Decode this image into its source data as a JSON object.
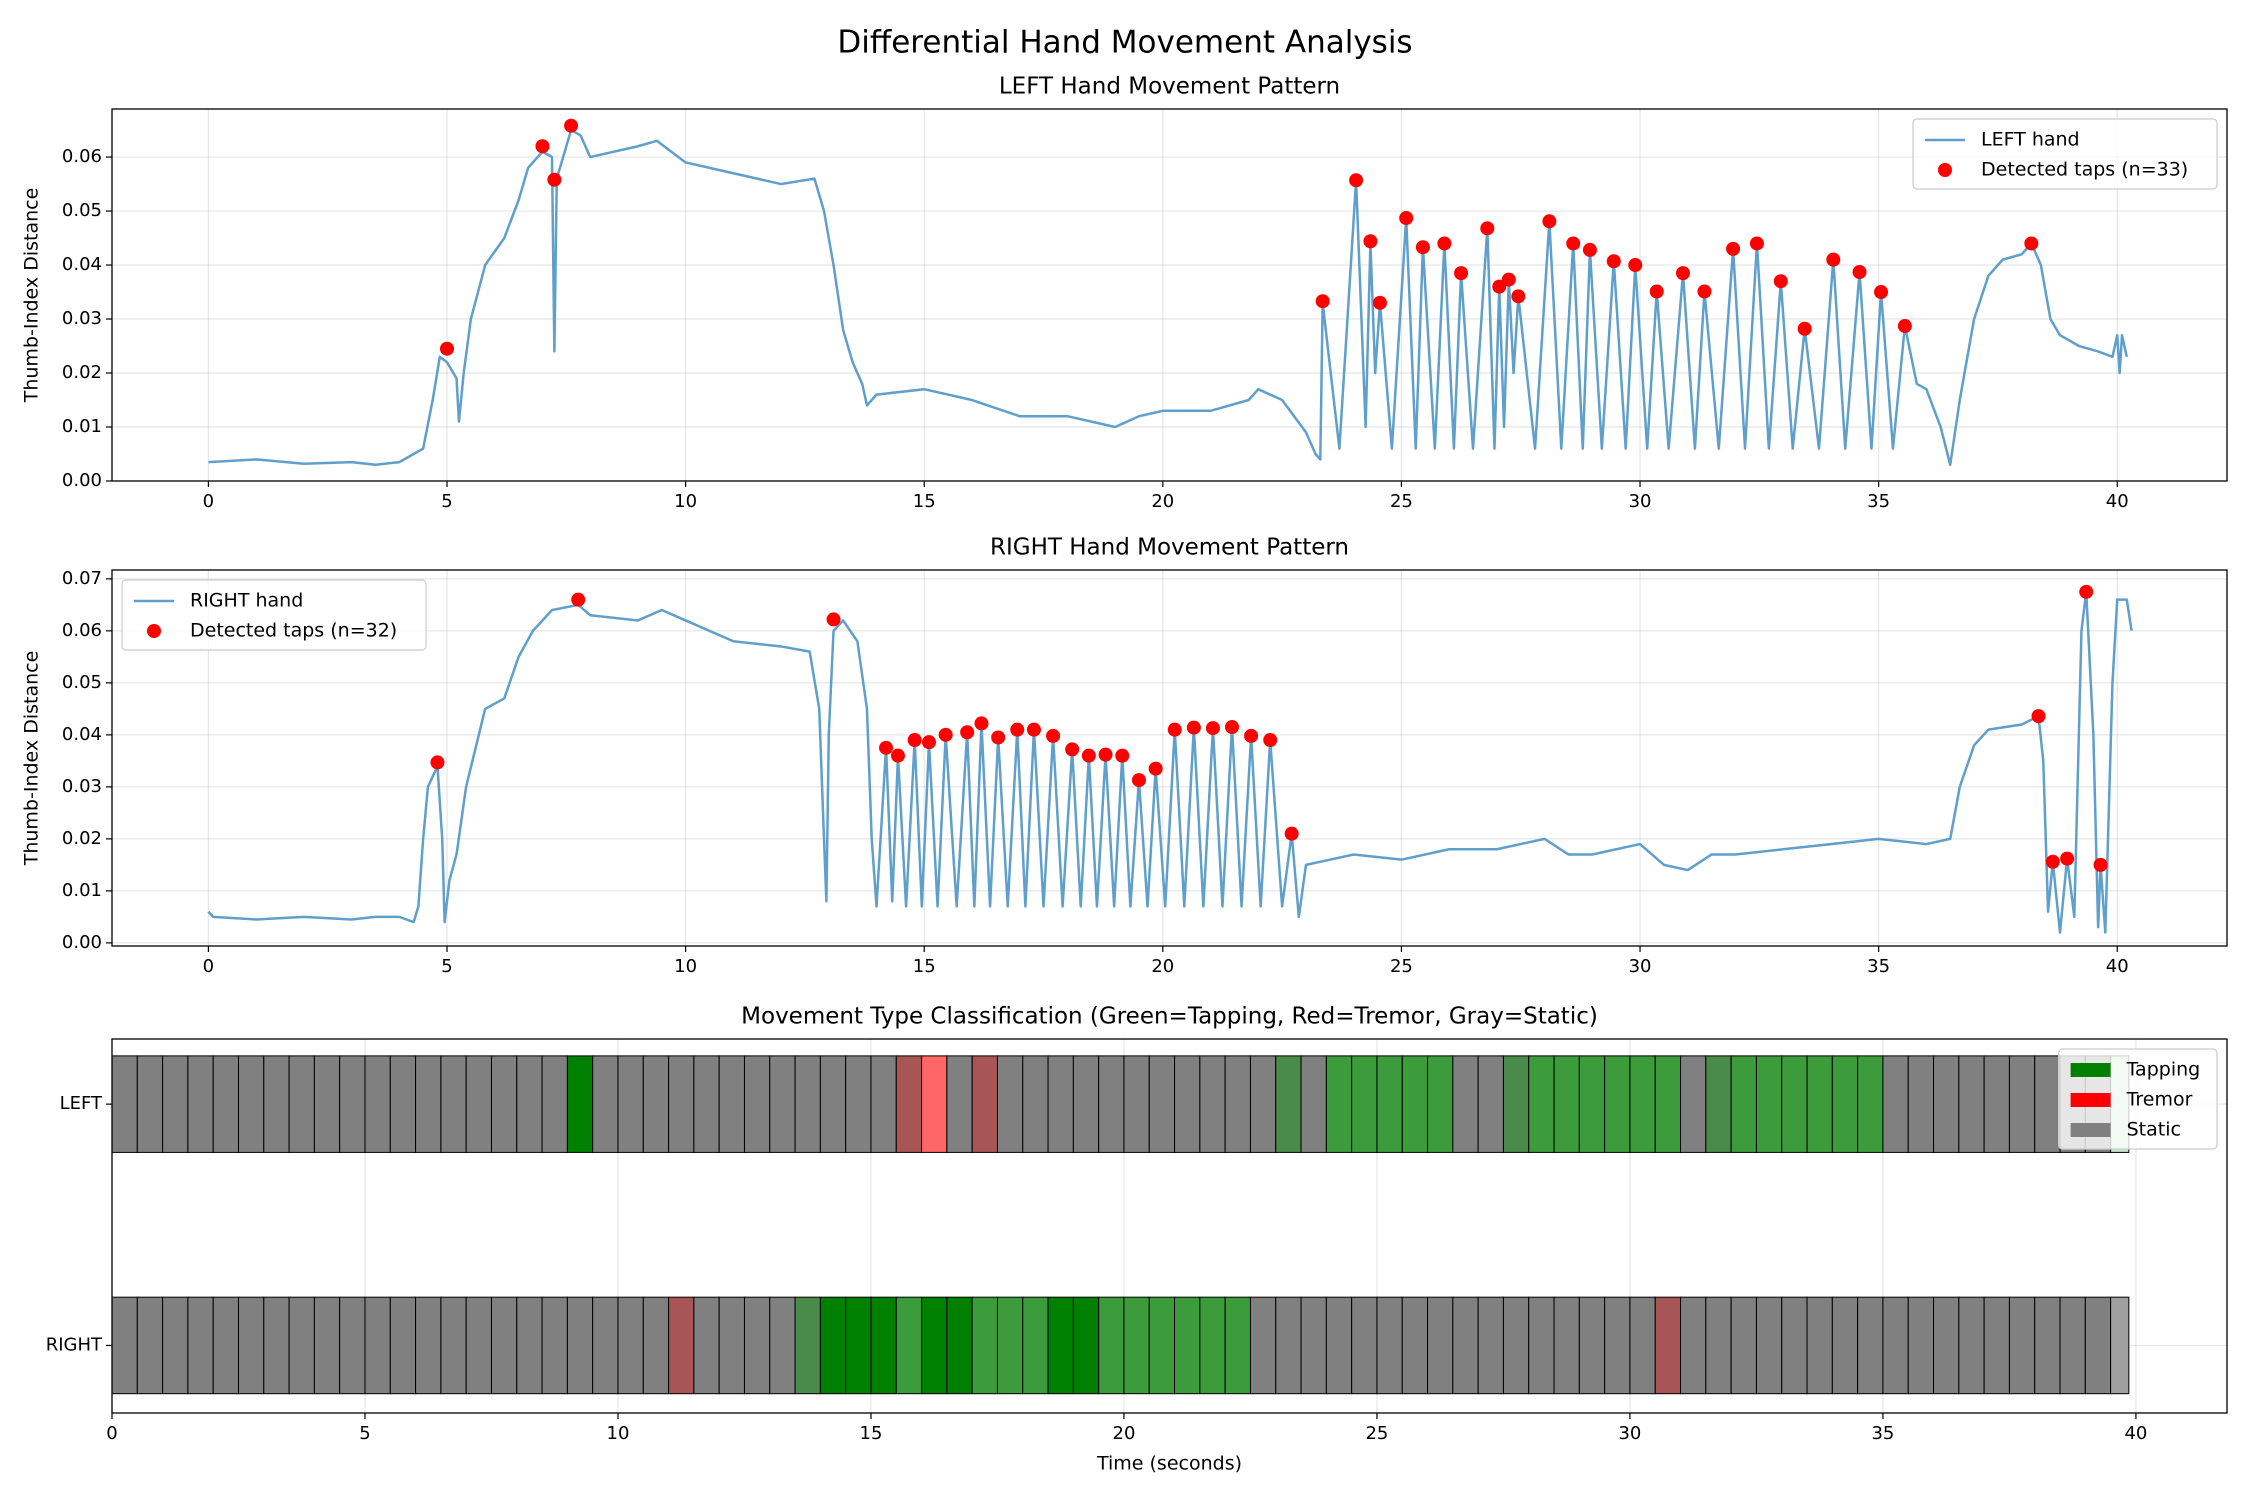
{
  "title": "Differential Hand Movement Analysis",
  "chart_data": [
    {
      "type": "line",
      "title": "LEFT Hand Movement Pattern",
      "ylabel": "Thumb-Index Distance",
      "xlim": [
        -2.02,
        42.3
      ],
      "ylim": [
        0,
        0.0689
      ],
      "xticks": [
        0,
        5,
        10,
        15,
        20,
        25,
        30,
        35,
        40
      ],
      "yticks": [
        {
          "value": 0,
          "label": "0.00"
        },
        0.01,
        0.02,
        0.03,
        0.04,
        0.05,
        0.06
      ],
      "grid": true,
      "legend": "upper right",
      "series": [
        {
          "name": "LEFT hand",
          "type": "line",
          "color": "#5f9fcb",
          "x": [
            0,
            1,
            2,
            3,
            3.5,
            4,
            4.5,
            4.7,
            4.85,
            5.0,
            5.2,
            5.25,
            5.35,
            5.5,
            5.8,
            6.2,
            6.5,
            6.7,
            7.0,
            7.2,
            7.25,
            7.3,
            7.5,
            7.6,
            7.8,
            8,
            9,
            9.4,
            10,
            11,
            12,
            12.7,
            12.9,
            13.1,
            13.3,
            13.5,
            13.7,
            13.8,
            14,
            15,
            16,
            17,
            18,
            19,
            19.5,
            20,
            21,
            21.8,
            22,
            22.5,
            23,
            23.2,
            23.3,
            23.35,
            23.7,
            24.05,
            24.25,
            24.35,
            24.45,
            24.55,
            24.8,
            25.1,
            25.3,
            25.45,
            25.7,
            25.9,
            26.1,
            26.25,
            26.5,
            26.8,
            26.95,
            27.05,
            27.15,
            27.25,
            27.35,
            27.45,
            27.8,
            28.1,
            28.35,
            28.6,
            28.8,
            28.95,
            29.2,
            29.45,
            29.7,
            29.9,
            30.15,
            30.35,
            30.6,
            30.9,
            31.15,
            31.35,
            31.65,
            31.95,
            32.2,
            32.45,
            32.7,
            32.95,
            33.2,
            33.45,
            33.75,
            34.05,
            34.3,
            34.6,
            34.85,
            35.05,
            35.3,
            35.55,
            35.8,
            36.0,
            36.3,
            36.5,
            36.7,
            37,
            37.3,
            37.6,
            38.0,
            38.2,
            38.4,
            38.6,
            38.8,
            39.2,
            39.6,
            39.9,
            40,
            40.05,
            40.1,
            40.2
          ],
          "values": [
            0.0035,
            0.004,
            0.0032,
            0.0035,
            0.003,
            0.0035,
            0.006,
            0.015,
            0.023,
            0.022,
            0.019,
            0.011,
            0.02,
            0.03,
            0.04,
            0.045,
            0.052,
            0.058,
            0.061,
            0.06,
            0.024,
            0.056,
            0.062,
            0.065,
            0.064,
            0.06,
            0.062,
            0.063,
            0.059,
            0.057,
            0.055,
            0.056,
            0.05,
            0.04,
            0.028,
            0.022,
            0.018,
            0.014,
            0.016,
            0.017,
            0.015,
            0.012,
            0.012,
            0.01,
            0.012,
            0.013,
            0.013,
            0.015,
            0.017,
            0.015,
            0.009,
            0.005,
            0.004,
            0.033,
            0.006,
            0.0557,
            0.01,
            0.044,
            0.02,
            0.033,
            0.006,
            0.0487,
            0.006,
            0.0433,
            0.006,
            0.044,
            0.006,
            0.0385,
            0.006,
            0.0468,
            0.006,
            0.036,
            0.01,
            0.0373,
            0.02,
            0.0342,
            0.006,
            0.0481,
            0.006,
            0.044,
            0.006,
            0.0428,
            0.006,
            0.0407,
            0.006,
            0.04,
            0.006,
            0.0351,
            0.006,
            0.0385,
            0.006,
            0.0351,
            0.006,
            0.043,
            0.006,
            0.044,
            0.006,
            0.037,
            0.006,
            0.0282,
            0.006,
            0.041,
            0.006,
            0.0387,
            0.006,
            0.035,
            0.006,
            0.0287,
            0.018,
            0.017,
            0.01,
            0.003,
            0.015,
            0.03,
            0.038,
            0.041,
            0.042,
            0.044,
            0.04,
            0.03,
            0.027,
            0.025,
            0.024,
            0.023,
            0.027,
            0.02,
            0.027,
            0.023
          ]
        },
        {
          "name": "Detected taps (n=33)",
          "type": "scatter",
          "color": "#ff0000",
          "x": [
            5.0,
            7.0,
            7.25,
            7.6,
            23.35,
            24.05,
            24.35,
            24.55,
            25.1,
            25.45,
            25.9,
            26.25,
            26.8,
            27.05,
            27.25,
            27.45,
            28.1,
            28.6,
            28.95,
            29.45,
            29.9,
            30.35,
            30.9,
            31.35,
            31.95,
            32.45,
            32.95,
            33.45,
            34.05,
            34.6,
            35.05,
            35.55,
            38.2
          ],
          "values": [
            0.0245,
            0.062,
            0.0558,
            0.0658,
            0.0333,
            0.0557,
            0.0444,
            0.033,
            0.0487,
            0.0433,
            0.044,
            0.0385,
            0.0468,
            0.036,
            0.0373,
            0.0342,
            0.0481,
            0.044,
            0.0428,
            0.0407,
            0.04,
            0.0351,
            0.0385,
            0.0351,
            0.043,
            0.044,
            0.037,
            0.0282,
            0.041,
            0.0387,
            0.035,
            0.0287,
            0.044
          ]
        }
      ]
    },
    {
      "type": "line",
      "title": "RIGHT Hand Movement Pattern",
      "ylabel": "Thumb-Index Distance",
      "xlim": [
        -2.02,
        42.3
      ],
      "ylim": [
        -0.0006,
        0.0717
      ],
      "xticks": [
        0,
        5,
        10,
        15,
        20,
        25,
        30,
        35,
        40
      ],
      "yticks": [
        {
          "value": 0,
          "label": "0.00"
        },
        0.01,
        0.02,
        0.03,
        0.04,
        0.05,
        0.06,
        0.07
      ],
      "grid": true,
      "legend": "upper left",
      "series": [
        {
          "name": "RIGHT hand",
          "type": "line",
          "color": "#5f9fcb",
          "x": [
            0,
            0.1,
            1,
            2,
            3,
            3.5,
            4,
            4.3,
            4.4,
            4.5,
            4.6,
            4.8,
            4.9,
            4.95,
            5.05,
            5.2,
            5.4,
            5.8,
            6.2,
            6.5,
            6.8,
            7.2,
            7.75,
            8,
            9,
            9.5,
            10,
            11,
            12,
            12.6,
            12.8,
            12.9,
            12.95,
            13.0,
            13.1,
            13.3,
            13.6,
            13.8,
            13.9,
            14.0,
            14.2,
            14.33,
            14.45,
            14.62,
            14.8,
            14.95,
            15.1,
            15.28,
            15.45,
            15.68,
            15.9,
            16.05,
            16.2,
            16.38,
            16.55,
            16.75,
            16.95,
            17.12,
            17.3,
            17.5,
            17.7,
            17.9,
            18.1,
            18.28,
            18.45,
            18.62,
            18.8,
            18.98,
            19.15,
            19.32,
            19.5,
            19.68,
            19.85,
            20.05,
            20.25,
            20.45,
            20.65,
            20.85,
            21.05,
            21.25,
            21.45,
            21.65,
            21.85,
            22.05,
            22.25,
            22.5,
            22.7,
            22.85,
            23.0,
            23.5,
            24,
            25,
            26,
            27,
            28,
            28.5,
            29,
            30,
            30.5,
            31,
            31.5,
            32,
            33,
            34,
            35,
            36,
            36.5,
            36.7,
            37,
            37.3,
            38,
            38.35,
            38.45,
            38.55,
            38.65,
            38.8,
            38.95,
            39.1,
            39.25,
            39.35,
            39.5,
            39.6,
            39.65,
            39.75,
            39.9,
            40.0,
            40.2,
            40.3
          ],
          "values": [
            0.006,
            0.005,
            0.0045,
            0.005,
            0.0045,
            0.005,
            0.005,
            0.004,
            0.007,
            0.02,
            0.03,
            0.034,
            0.02,
            0.004,
            0.012,
            0.017,
            0.03,
            0.045,
            0.047,
            0.055,
            0.06,
            0.064,
            0.065,
            0.063,
            0.062,
            0.064,
            0.062,
            0.058,
            0.057,
            0.056,
            0.045,
            0.02,
            0.008,
            0.04,
            0.06,
            0.062,
            0.058,
            0.045,
            0.02,
            0.007,
            0.0375,
            0.008,
            0.036,
            0.007,
            0.039,
            0.007,
            0.0386,
            0.007,
            0.04,
            0.007,
            0.0405,
            0.007,
            0.0422,
            0.007,
            0.0395,
            0.007,
            0.041,
            0.007,
            0.041,
            0.007,
            0.0398,
            0.007,
            0.0372,
            0.007,
            0.036,
            0.007,
            0.0362,
            0.007,
            0.036,
            0.007,
            0.0313,
            0.007,
            0.0335,
            0.007,
            0.041,
            0.007,
            0.0414,
            0.007,
            0.0413,
            0.007,
            0.0415,
            0.007,
            0.0398,
            0.007,
            0.039,
            0.007,
            0.021,
            0.005,
            0.015,
            0.016,
            0.017,
            0.016,
            0.018,
            0.018,
            0.02,
            0.017,
            0.017,
            0.019,
            0.015,
            0.014,
            0.017,
            0.017,
            0.018,
            0.019,
            0.02,
            0.019,
            0.02,
            0.03,
            0.038,
            0.041,
            0.042,
            0.0436,
            0.035,
            0.006,
            0.0156,
            0.002,
            0.0162,
            0.005,
            0.06,
            0.0675,
            0.04,
            0.003,
            0.015,
            0.002,
            0.05,
            0.066,
            0.066,
            0.06
          ]
        },
        {
          "name": "Detected taps (n=32)",
          "type": "scatter",
          "color": "#ff0000",
          "x": [
            4.8,
            7.75,
            13.1,
            14.2,
            14.45,
            14.8,
            15.1,
            15.45,
            15.9,
            16.2,
            16.55,
            16.95,
            17.3,
            17.7,
            18.1,
            18.45,
            18.8,
            19.15,
            19.5,
            19.85,
            20.25,
            20.65,
            21.05,
            21.45,
            21.85,
            22.25,
            22.7,
            38.35,
            38.65,
            38.95,
            39.35,
            39.65
          ],
          "values": [
            0.0347,
            0.066,
            0.0622,
            0.0375,
            0.036,
            0.039,
            0.0386,
            0.04,
            0.0405,
            0.0422,
            0.0395,
            0.041,
            0.041,
            0.0398,
            0.0372,
            0.036,
            0.0362,
            0.036,
            0.0313,
            0.0335,
            0.041,
            0.0414,
            0.0413,
            0.0415,
            0.0398,
            0.039,
            0.021,
            0.0436,
            0.0156,
            0.0162,
            0.0675,
            0.015
          ]
        }
      ]
    },
    {
      "type": "segments",
      "title": "Movement Type Classification (Green=Tapping, Red=Tremor, Gray=Static)",
      "xlabel": "Time (seconds)",
      "xlim": [
        0,
        41.8
      ],
      "ylim": [
        -0.28,
        1.27
      ],
      "xticks": [
        0,
        5,
        10,
        15,
        20,
        25,
        30,
        35,
        40
      ],
      "grid": true,
      "legend": "upper right",
      "categories": [
        "LEFT",
        "RIGHT"
      ],
      "legend_items": [
        {
          "name": "Tapping",
          "color": "#008000"
        },
        {
          "name": "Tremor",
          "color": "#ff0000"
        },
        {
          "name": "Static",
          "color": "#808080"
        }
      ],
      "edges": [
        0,
        0.5,
        1,
        1.5,
        2,
        2.5,
        3,
        3.5,
        4,
        4.5,
        5,
        5.5,
        6,
        6.5,
        7,
        7.5,
        8,
        8.5,
        9,
        9.5,
        10,
        10.5,
        11,
        11.5,
        12,
        12.5,
        13,
        13.5,
        14,
        14.5,
        15,
        15.5,
        16,
        16.5,
        17,
        17.5,
        18,
        18.5,
        19,
        19.5,
        20,
        20.5,
        21,
        21.5,
        22,
        22.5,
        23,
        23.5,
        24,
        24.5,
        25,
        25.5,
        26,
        26.5,
        27,
        27.5,
        28,
        28.5,
        29,
        29.5,
        30,
        30.5,
        31,
        31.5,
        32,
        32.5,
        33,
        33.5,
        34,
        34.5,
        35,
        35.5,
        36,
        36.5,
        37,
        37.5,
        38,
        38.5,
        39,
        39.5,
        39.86
      ],
      "rows": [
        {
          "colors": [
            "#808080",
            "#808080",
            "#808080",
            "#808080",
            "#808080",
            "#808080",
            "#808080",
            "#808080",
            "#808080",
            "#808080",
            "#808080",
            "#808080",
            "#808080",
            "#808080",
            "#808080",
            "#808080",
            "#808080",
            "#808080",
            "#008000",
            "#808080",
            "#808080",
            "#808080",
            "#808080",
            "#808080",
            "#808080",
            "#808080",
            "#808080",
            "#808080",
            "#808080",
            "#808080",
            "#808080",
            "#a85555",
            "#ff6666",
            "#808080",
            "#a85555",
            "#808080",
            "#808080",
            "#808080",
            "#808080",
            "#808080",
            "#808080",
            "#808080",
            "#808080",
            "#808080",
            "#808080",
            "#808080",
            "#4a8a4a",
            "#808080",
            "#3c9c3c",
            "#3c9c3c",
            "#3c9c3c",
            "#3c9c3c",
            "#3c9c3c",
            "#808080",
            "#808080",
            "#4a8a4a",
            "#3c9c3c",
            "#3c9c3c",
            "#3c9c3c",
            "#3c9c3c",
            "#3c9c3c",
            "#3c9c3c",
            "#808080",
            "#4a8a4a",
            "#3c9c3c",
            "#3c9c3c",
            "#3c9c3c",
            "#3c9c3c",
            "#3c9c3c",
            "#3c9c3c",
            "#808080",
            "#808080",
            "#808080",
            "#808080",
            "#808080",
            "#808080",
            "#808080",
            "#808080",
            "#808080",
            "#c8e6c8"
          ]
        },
        {
          "colors": [
            "#808080",
            "#808080",
            "#808080",
            "#808080",
            "#808080",
            "#808080",
            "#808080",
            "#808080",
            "#808080",
            "#808080",
            "#808080",
            "#808080",
            "#808080",
            "#808080",
            "#808080",
            "#808080",
            "#808080",
            "#808080",
            "#808080",
            "#808080",
            "#808080",
            "#808080",
            "#a85555",
            "#808080",
            "#808080",
            "#808080",
            "#808080",
            "#4a8a4a",
            "#008000",
            "#008000",
            "#008000",
            "#3c9c3c",
            "#008000",
            "#008000",
            "#3c9c3c",
            "#3c9c3c",
            "#3c9c3c",
            "#008000",
            "#008000",
            "#3c9c3c",
            "#3c9c3c",
            "#3c9c3c",
            "#3c9c3c",
            "#3c9c3c",
            "#3c9c3c",
            "#808080",
            "#808080",
            "#808080",
            "#808080",
            "#808080",
            "#808080",
            "#808080",
            "#808080",
            "#808080",
            "#808080",
            "#808080",
            "#808080",
            "#808080",
            "#808080",
            "#808080",
            "#808080",
            "#a85555",
            "#808080",
            "#808080",
            "#808080",
            "#808080",
            "#808080",
            "#808080",
            "#808080",
            "#808080",
            "#808080",
            "#808080",
            "#808080",
            "#808080",
            "#808080",
            "#808080",
            "#808080",
            "#808080",
            "#808080",
            "#a0a0a0"
          ]
        }
      ]
    }
  ]
}
